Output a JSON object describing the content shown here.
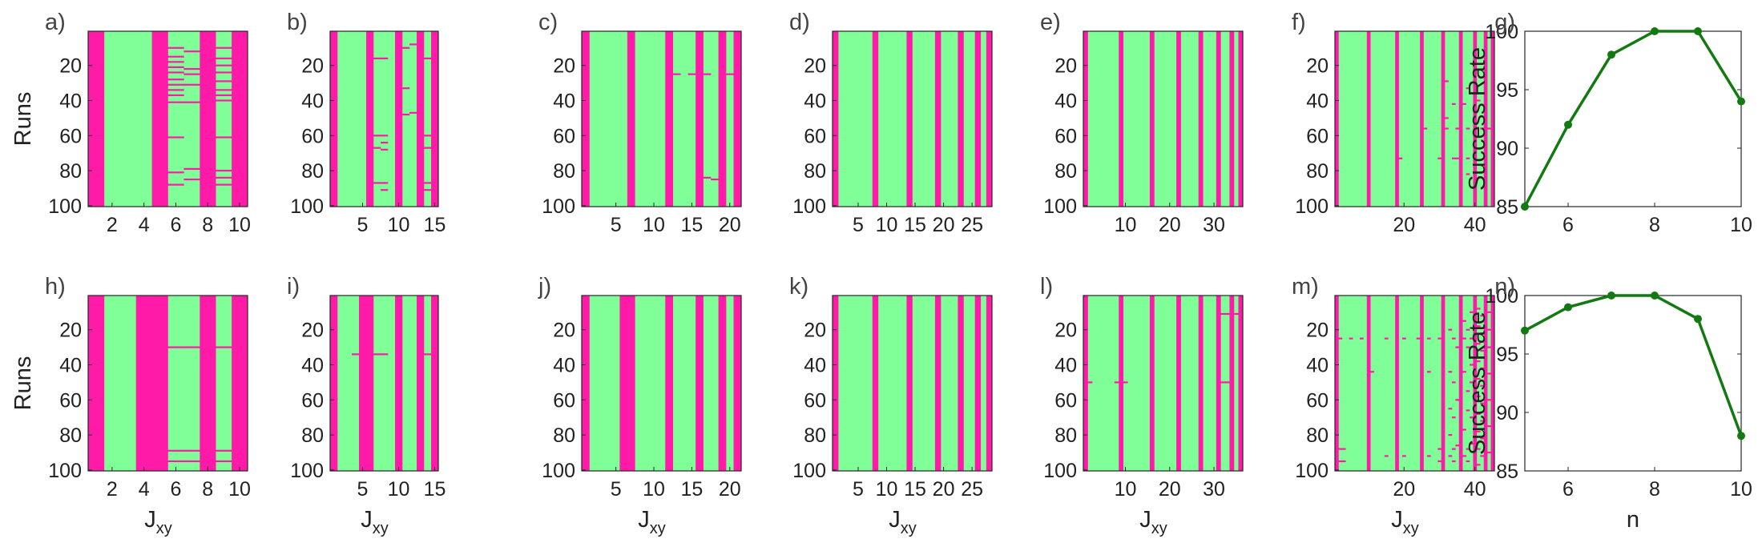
{
  "colors": {
    "fail": "#ff1aa8",
    "success": "#80ff99",
    "line": "#137a13",
    "axis": "#262626"
  },
  "chart_data": [
    {
      "label": "a)",
      "type": "heatmap",
      "ncols": 10,
      "nrows": 100,
      "xticks": [
        2,
        4,
        6,
        8,
        10
      ],
      "yticks": [
        20,
        40,
        60,
        80,
        100
      ],
      "ylabel": "Runs",
      "xlabel": "",
      "xlabel_sub": "",
      "fail_cols": [
        1,
        5,
        8,
        10
      ],
      "partial": [
        {
          "col": 6,
          "rows": [
            10,
            15,
            18,
            21,
            24,
            28,
            31,
            34,
            37,
            41,
            61,
            81,
            88
          ]
        },
        {
          "col": 7,
          "rows": [
            12,
            22,
            25,
            31,
            41,
            79,
            85
          ]
        },
        {
          "col": 9,
          "rows": [
            10,
            16,
            20,
            24,
            29,
            34,
            37,
            40,
            61,
            80,
            84,
            88
          ]
        }
      ]
    },
    {
      "label": "b)",
      "type": "heatmap",
      "ncols": 15,
      "nrows": 100,
      "xticks": [
        5,
        10,
        15
      ],
      "yticks": [
        20,
        40,
        60,
        80,
        100
      ],
      "ylabel": "",
      "xlabel": "",
      "xlabel_sub": "",
      "fail_cols": [
        1,
        6,
        10,
        13,
        15
      ],
      "partial": [
        {
          "col": 7,
          "rows": [
            16,
            60,
            67,
            87
          ]
        },
        {
          "col": 8,
          "rows": [
            16,
            60,
            64,
            68,
            87,
            91
          ]
        },
        {
          "col": 11,
          "rows": [
            10,
            33,
            48
          ]
        },
        {
          "col": 12,
          "rows": [
            8,
            47
          ]
        },
        {
          "col": 14,
          "rows": [
            16,
            60,
            67,
            87,
            91
          ]
        }
      ]
    },
    {
      "label": "c)",
      "type": "heatmap",
      "ncols": 21,
      "nrows": 100,
      "xticks": [
        5,
        10,
        15,
        20
      ],
      "yticks": [
        20,
        40,
        60,
        80,
        100
      ],
      "ylabel": "",
      "xlabel": "",
      "xlabel_sub": "",
      "fail_cols": [
        1,
        7,
        12,
        16,
        19,
        21
      ],
      "partial": [
        {
          "col": 13,
          "rows": [
            25
          ]
        },
        {
          "col": 15,
          "rows": [
            25
          ]
        },
        {
          "col": 17,
          "rows": [
            25,
            84
          ]
        },
        {
          "col": 18,
          "rows": [
            85
          ]
        },
        {
          "col": 20,
          "rows": [
            25
          ]
        }
      ]
    },
    {
      "label": "d)",
      "type": "heatmap",
      "ncols": 28,
      "nrows": 100,
      "xticks": [
        5,
        10,
        15,
        20,
        25
      ],
      "yticks": [
        20,
        40,
        60,
        80,
        100
      ],
      "ylabel": "",
      "xlabel": "",
      "xlabel_sub": "",
      "fail_cols": [
        1,
        8,
        14,
        19,
        23,
        26,
        28
      ],
      "partial": []
    },
    {
      "label": "e)",
      "type": "heatmap",
      "ncols": 36,
      "nrows": 100,
      "xticks": [
        10,
        20,
        30
      ],
      "yticks": [
        20,
        40,
        60,
        80,
        100
      ],
      "ylabel": "",
      "xlabel": "",
      "xlabel_sub": "",
      "fail_cols": [
        1,
        9,
        16,
        22,
        27,
        31,
        34,
        36
      ],
      "partial": []
    },
    {
      "label": "f)",
      "type": "heatmap",
      "ncols": 45,
      "nrows": 100,
      "xticks": [
        20,
        40
      ],
      "yticks": [
        20,
        40,
        60,
        80,
        100
      ],
      "ylabel": "",
      "xlabel": "",
      "xlabel_sub": "",
      "fail_cols": [
        1,
        10,
        18,
        25,
        31,
        36,
        40,
        43,
        45
      ],
      "partial": [
        {
          "col": 19,
          "rows": [
            73
          ]
        },
        {
          "col": 26,
          "rows": [
            56
          ]
        },
        {
          "col": 30,
          "rows": [
            73
          ]
        },
        {
          "col": 32,
          "rows": [
            29,
            50,
            56
          ]
        },
        {
          "col": 34,
          "rows": [
            42,
            73
          ]
        },
        {
          "col": 35,
          "rows": [
            56,
            73
          ]
        },
        {
          "col": 37,
          "rows": [
            42
          ]
        },
        {
          "col": 38,
          "rows": [
            33,
            56,
            73,
            82
          ]
        },
        {
          "col": 41,
          "rows": [
            40
          ]
        },
        {
          "col": 42,
          "rows": [
            56
          ]
        },
        {
          "col": 44,
          "rows": [
            56
          ]
        }
      ]
    },
    {
      "label": "g)",
      "type": "line",
      "x": [
        5,
        6,
        7,
        8,
        9,
        10
      ],
      "y": [
        85,
        92,
        98,
        100,
        100,
        94
      ],
      "xlim": [
        5,
        10
      ],
      "ylim": [
        85,
        100
      ],
      "xticks": [
        6,
        8,
        10
      ],
      "yticks": [
        85,
        90,
        95,
        100
      ],
      "ylabel": "Success Rate",
      "xlabel": ""
    },
    {
      "label": "h)",
      "type": "heatmap",
      "ncols": 10,
      "nrows": 100,
      "xticks": [
        2,
        4,
        6,
        8,
        10
      ],
      "yticks": [
        20,
        40,
        60,
        80,
        100
      ],
      "ylabel": "Runs",
      "xlabel": "J",
      "xlabel_sub": "xy",
      "fail_cols": [
        1,
        4,
        5,
        8,
        10
      ],
      "partial": [
        {
          "col": 6,
          "rows": [
            30,
            89,
            95
          ]
        },
        {
          "col": 7,
          "rows": [
            30,
            89,
            95
          ]
        },
        {
          "col": 9,
          "rows": [
            30,
            89,
            95
          ]
        }
      ]
    },
    {
      "label": "i)",
      "type": "heatmap",
      "ncols": 15,
      "nrows": 100,
      "xticks": [
        5,
        10,
        15
      ],
      "yticks": [
        20,
        40,
        60,
        80,
        100
      ],
      "ylabel": "",
      "xlabel": "J",
      "xlabel_sub": "xy",
      "fail_cols": [
        1,
        5,
        6,
        10,
        13,
        15
      ],
      "partial": [
        {
          "col": 4,
          "rows": [
            34
          ]
        },
        {
          "col": 7,
          "rows": [
            34
          ]
        },
        {
          "col": 8,
          "rows": [
            34
          ]
        },
        {
          "col": 14,
          "rows": [
            34
          ]
        }
      ]
    },
    {
      "label": "j)",
      "type": "heatmap",
      "ncols": 21,
      "nrows": 100,
      "xticks": [
        5,
        10,
        15,
        20
      ],
      "yticks": [
        20,
        40,
        60,
        80,
        100
      ],
      "ylabel": "",
      "xlabel": "J",
      "xlabel_sub": "xy",
      "fail_cols": [
        1,
        6,
        7,
        12,
        16,
        19,
        21
      ],
      "partial": []
    },
    {
      "label": "k)",
      "type": "heatmap",
      "ncols": 28,
      "nrows": 100,
      "xticks": [
        5,
        10,
        15,
        20,
        25
      ],
      "yticks": [
        20,
        40,
        60,
        80,
        100
      ],
      "ylabel": "",
      "xlabel": "J",
      "xlabel_sub": "xy",
      "fail_cols": [
        1,
        8,
        14,
        19,
        23,
        26,
        28
      ],
      "partial": []
    },
    {
      "label": "l)",
      "type": "heatmap",
      "ncols": 36,
      "nrows": 100,
      "xticks": [
        10,
        20,
        30
      ],
      "yticks": [
        20,
        40,
        60,
        80,
        100
      ],
      "ylabel": "",
      "xlabel": "J",
      "xlabel_sub": "xy",
      "fail_cols": [
        1,
        9,
        16,
        22,
        27,
        31,
        34,
        36
      ],
      "partial": [
        {
          "col": 2,
          "rows": [
            50
          ]
        },
        {
          "col": 8,
          "rows": [
            50
          ]
        },
        {
          "col": 10,
          "rows": [
            50
          ]
        },
        {
          "col": 32,
          "rows": [
            11,
            50
          ]
        },
        {
          "col": 33,
          "rows": [
            11,
            50
          ]
        },
        {
          "col": 35,
          "rows": [
            11
          ]
        }
      ]
    },
    {
      "label": "m)",
      "type": "heatmap",
      "ncols": 45,
      "nrows": 100,
      "xticks": [
        20,
        40
      ],
      "yticks": [
        20,
        40,
        60,
        80,
        100
      ],
      "ylabel": "",
      "xlabel": "J",
      "xlabel_sub": "xy",
      "fail_cols": [
        1,
        10,
        18,
        25,
        31,
        36,
        40,
        43,
        45
      ],
      "partial": [
        {
          "col": 2,
          "rows": [
            25,
            88,
            95
          ]
        },
        {
          "col": 3,
          "rows": [
            88,
            95
          ]
        },
        {
          "col": 5,
          "rows": [
            25
          ]
        },
        {
          "col": 8,
          "rows": [
            25
          ]
        },
        {
          "col": 11,
          "rows": [
            44
          ]
        },
        {
          "col": 15,
          "rows": [
            25,
            92
          ]
        },
        {
          "col": 20,
          "rows": [
            25,
            92
          ]
        },
        {
          "col": 24,
          "rows": [
            25
          ]
        },
        {
          "col": 27,
          "rows": [
            25,
            44,
            92
          ]
        },
        {
          "col": 30,
          "rows": [
            25,
            88,
            95
          ]
        },
        {
          "col": 33,
          "rows": [
            20,
            44,
            65,
            80,
            92
          ]
        },
        {
          "col": 34,
          "rows": [
            25,
            50,
            70,
            88,
            95
          ]
        },
        {
          "col": 35,
          "rows": [
            30,
            60,
            86
          ]
        },
        {
          "col": 37,
          "rows": [
            15,
            25,
            44,
            77,
            92
          ]
        },
        {
          "col": 38,
          "rows": [
            20,
            30,
            55,
            66,
            88,
            95
          ]
        },
        {
          "col": 39,
          "rows": [
            10,
            25,
            40,
            50,
            70,
            85
          ]
        },
        {
          "col": 41,
          "rows": [
            8,
            18,
            28,
            38,
            48,
            58,
            68,
            78,
            88,
            97
          ]
        },
        {
          "col": 42,
          "rows": [
            12,
            22,
            32,
            42,
            52,
            62,
            72,
            82,
            92
          ]
        },
        {
          "col": 44,
          "rows": [
            10,
            20,
            30,
            45,
            60,
            75,
            90
          ]
        }
      ]
    },
    {
      "label": "n)",
      "type": "line",
      "x": [
        5,
        6,
        7,
        8,
        9,
        10
      ],
      "y": [
        97,
        99,
        100,
        100,
        98,
        88
      ],
      "xlim": [
        5,
        10
      ],
      "ylim": [
        85,
        100
      ],
      "xticks": [
        6,
        8,
        10
      ],
      "yticks": [
        85,
        90,
        95,
        100
      ],
      "ylabel": "Success Rate",
      "xlabel": "n"
    }
  ]
}
